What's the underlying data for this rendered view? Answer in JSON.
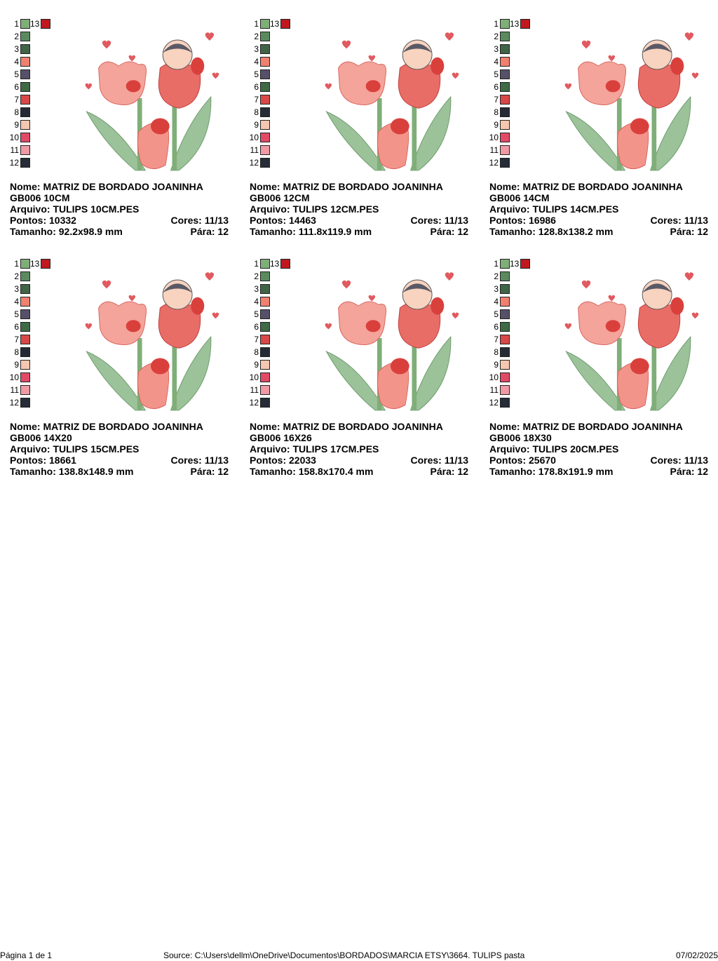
{
  "palette": [
    {
      "num": "1",
      "color": "#7fae78"
    },
    {
      "num": "2",
      "color": "#5a8a5e"
    },
    {
      "num": "3",
      "color": "#3f6446"
    },
    {
      "num": "4",
      "color": "#f08070"
    },
    {
      "num": "5",
      "color": "#565068"
    },
    {
      "num": "6",
      "color": "#3e6a45"
    },
    {
      "num": "7",
      "color": "#d94848"
    },
    {
      "num": "8",
      "color": "#252b35"
    },
    {
      "num": "9",
      "color": "#f5c6b0"
    },
    {
      "num": "10",
      "color": "#e04a66"
    },
    {
      "num": "11",
      "color": "#ef9aa4"
    },
    {
      "num": "12",
      "color": "#262d38"
    }
  ],
  "palette_extra": {
    "num": "13",
    "color": "#c0181e"
  },
  "labels": {
    "nome": "Nome:",
    "arquivo": "Arquivo:",
    "pontos": "Pontos:",
    "tamanho": "Tamanho:",
    "cores": "Cores:",
    "para": "Pára:"
  },
  "designs": [
    {
      "nome": "MATRIZ DE BORDADO JOANINHA GB006 10CM",
      "arquivo": "TULIPS 10CM.PES",
      "pontos": "10332",
      "tamanho": "92.2x98.9 mm",
      "cores": "11/13",
      "para": "12"
    },
    {
      "nome": "MATRIZ DE BORDADO JOANINHA GB006 12CM",
      "arquivo": "TULIPS 12CM.PES",
      "pontos": "14463",
      "tamanho": "111.8x119.9 mm",
      "cores": "11/13",
      "para": "12"
    },
    {
      "nome": "MATRIZ DE BORDADO JOANINHA GB006 14CM",
      "arquivo": "TULIPS 14CM.PES",
      "pontos": "16986",
      "tamanho": "128.8x138.2 mm",
      "cores": "11/13",
      "para": "12"
    },
    {
      "nome": "MATRIZ DE BORDADO JOANINHA GB006 14X20",
      "arquivo": "TULIPS 15CM.PES",
      "pontos": "18661",
      "tamanho": "138.8x148.9 mm",
      "cores": "11/13",
      "para": "12"
    },
    {
      "nome": "MATRIZ DE BORDADO JOANINHA GB006 16X26",
      "arquivo": "TULIPS 17CM.PES",
      "pontos": "22033",
      "tamanho": "158.8x170.4 mm",
      "cores": "11/13",
      "para": "12"
    },
    {
      "nome": "MATRIZ DE BORDADO JOANINHA GB006 18X30",
      "arquivo": "TULIPS 20CM.PES",
      "pontos": "25670",
      "tamanho": "178.8x191.9 mm",
      "cores": "11/13",
      "para": "12"
    }
  ],
  "footer": {
    "page": "Página 1 de 1",
    "source": "Source: C:\\Users\\dellm\\OneDrive\\Documentos\\BORDADOS\\MARCIA ETSY\\3664. TULIPS pasta",
    "date": "07/02/2025"
  }
}
